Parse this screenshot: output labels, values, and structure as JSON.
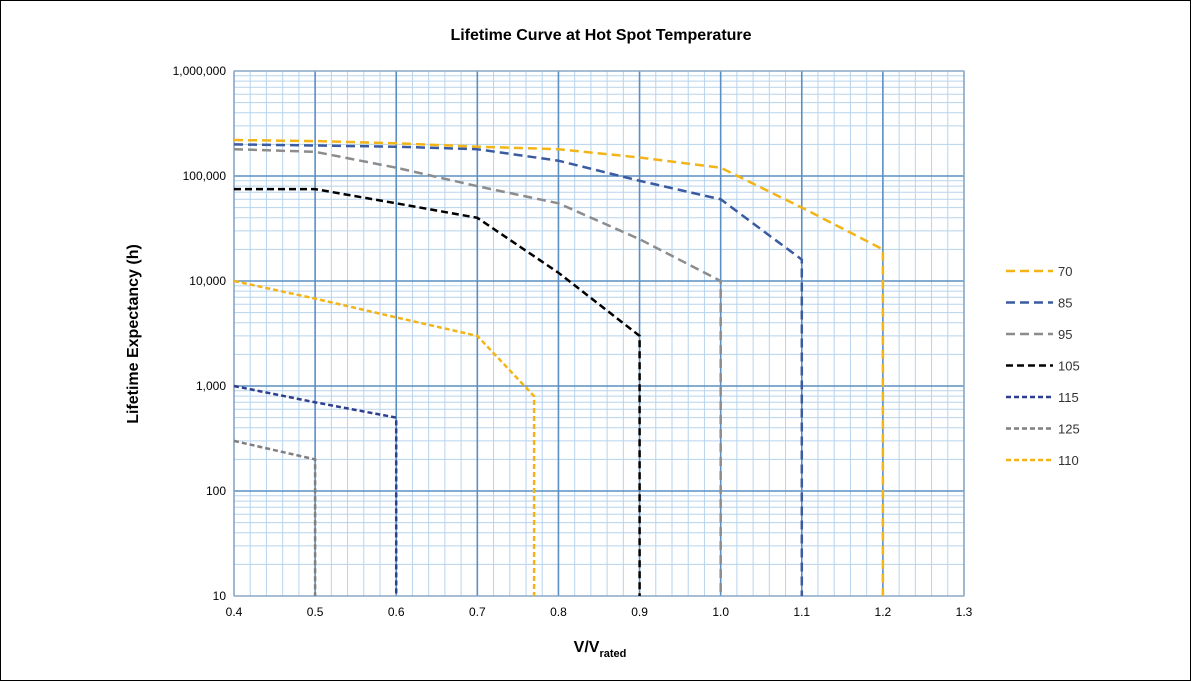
{
  "chart_data": {
    "type": "line",
    "title": "Lifetime Curve at Hot Spot Temperature",
    "xlabel": "V/V",
    "xlabel_sub": "rated",
    "ylabel": "Lifetime Expectancy (h)",
    "x_scale": "linear",
    "y_scale": "log",
    "xlim": [
      0.4,
      1.3
    ],
    "ylim": [
      10,
      1000000
    ],
    "x_ticks": [
      "0.4",
      "0.5",
      "0.6",
      "0.7",
      "0.8",
      "0.9",
      "1.0",
      "1.1",
      "1.2",
      "1.3"
    ],
    "y_ticks": [
      "10",
      "100",
      "1,000",
      "10,000",
      "100,000",
      "1,000,000"
    ],
    "grid": true,
    "legend_position": "right",
    "series": [
      {
        "name": "70",
        "color": "#F2B417",
        "dash": "long",
        "points": [
          [
            0.4,
            220000
          ],
          [
            0.5,
            215000
          ],
          [
            0.6,
            205000
          ],
          [
            0.7,
            190000
          ],
          [
            0.8,
            180000
          ],
          [
            0.9,
            150000
          ],
          [
            1.0,
            120000
          ],
          [
            1.1,
            50000
          ],
          [
            1.2,
            20000
          ],
          [
            1.2,
            10
          ]
        ]
      },
      {
        "name": "85",
        "color": "#3A5BA0",
        "dash": "long",
        "points": [
          [
            0.4,
            200000
          ],
          [
            0.5,
            195000
          ],
          [
            0.6,
            190000
          ],
          [
            0.7,
            180000
          ],
          [
            0.8,
            140000
          ],
          [
            0.9,
            90000
          ],
          [
            1.0,
            60000
          ],
          [
            1.1,
            16000
          ],
          [
            1.1,
            10
          ]
        ]
      },
      {
        "name": "95",
        "color": "#8C8C8C",
        "dash": "long",
        "points": [
          [
            0.4,
            180000
          ],
          [
            0.5,
            170000
          ],
          [
            0.6,
            120000
          ],
          [
            0.7,
            80000
          ],
          [
            0.8,
            55000
          ],
          [
            0.9,
            25000
          ],
          [
            1.0,
            10000
          ],
          [
            1.0,
            10
          ]
        ]
      },
      {
        "name": "105",
        "color": "#000000",
        "dash": "medium",
        "points": [
          [
            0.4,
            75000
          ],
          [
            0.5,
            75000
          ],
          [
            0.6,
            55000
          ],
          [
            0.7,
            40000
          ],
          [
            0.8,
            12000
          ],
          [
            0.9,
            3000
          ],
          [
            0.9,
            10
          ]
        ]
      },
      {
        "name": "115",
        "color": "#2E3F8F",
        "dash": "short",
        "points": [
          [
            0.4,
            1000
          ],
          [
            0.5,
            700
          ],
          [
            0.6,
            500
          ],
          [
            0.6,
            10
          ]
        ]
      },
      {
        "name": "125",
        "color": "#7F7F7F",
        "dash": "short",
        "points": [
          [
            0.4,
            300
          ],
          [
            0.5,
            200
          ],
          [
            0.5,
            10
          ]
        ]
      },
      {
        "name": "110",
        "color": "#F2B417",
        "dash": "short",
        "points": [
          [
            0.4,
            10000
          ],
          [
            0.5,
            6800
          ],
          [
            0.6,
            4500
          ],
          [
            0.7,
            3000
          ],
          [
            0.77,
            800
          ],
          [
            0.77,
            10
          ]
        ]
      }
    ]
  }
}
